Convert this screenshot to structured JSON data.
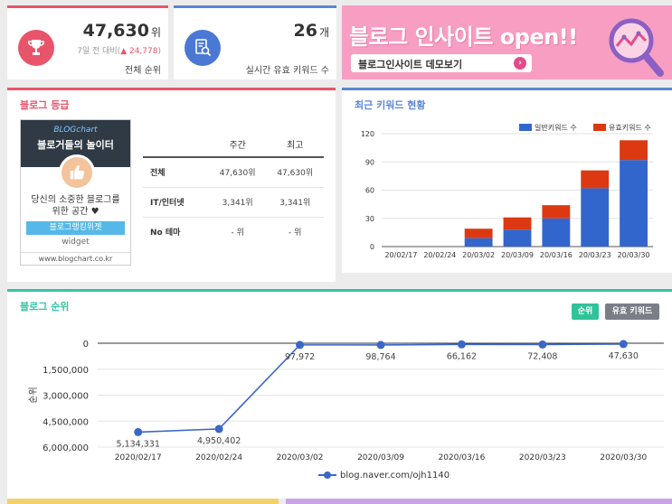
{
  "stats": {
    "rank": {
      "value": "47,630",
      "unit": "위",
      "change_prefix": "7일 전 대비(",
      "change_arrow": "▲",
      "change_value": "24,778",
      "change_suffix": ")",
      "label": "전체 순위",
      "icon": "trophy-icon",
      "color": "#e8556b"
    },
    "keywords": {
      "value": "26",
      "unit": "개",
      "label": "실시간 유효 키워드 수",
      "icon": "document-search-icon",
      "color": "#4a78d4"
    }
  },
  "banner": {
    "title": "블로그 인사이트 open!!",
    "button_label": "블로그인사이트 데모보기",
    "chevron": "›",
    "icon": "magnifier-chart-icon"
  },
  "grade": {
    "title": "블로그 등급",
    "widget": {
      "brand": "BLOGchart",
      "headline": "블로거들의 놀이터",
      "line1": "당신의 소중한 블로그를",
      "line2": "위한 공간 ♥",
      "link": "블로그랭킹위젯",
      "label": "widget",
      "url": "www.blogchart.co.kr"
    },
    "columns": [
      "",
      "주간",
      "최고"
    ],
    "rows": [
      {
        "label": "전체",
        "weekly": "47,630위",
        "best": "47,630위"
      },
      {
        "label": "IT/인터넷",
        "weekly": "3,341위",
        "best": "3,341위"
      },
      {
        "label": "No 테마",
        "weekly": "- 위",
        "best": "- 위"
      }
    ]
  },
  "keyword_chart": {
    "title": "최근 키워드 현황",
    "chart_data": {
      "type": "bar",
      "stacked": true,
      "categories": [
        "20/02/17",
        "20/02/24",
        "20/03/02",
        "20/03/09",
        "20/03/16",
        "20/03/23",
        "20/03/30"
      ],
      "series": [
        {
          "name": "일반키워드 수",
          "color": "#3366cc",
          "values": [
            0,
            0,
            9,
            18,
            30,
            62,
            92
          ]
        },
        {
          "name": "유효키워드 수",
          "color": "#dc3912",
          "values": [
            0,
            0,
            10,
            13,
            14,
            19,
            21
          ]
        }
      ],
      "ylim": [
        0,
        120
      ],
      "yticks": [
        0,
        30,
        60,
        90,
        120
      ],
      "legend": "top-right",
      "grid": true
    }
  },
  "rank_chart": {
    "title": "블로그 순위",
    "buttons": {
      "rank": "순위",
      "keyword": "유효 키워드"
    },
    "chart_data": {
      "type": "line",
      "categories": [
        "2020/02/17",
        "2020/02/24",
        "2020/03/02",
        "2020/03/09",
        "2020/03/16",
        "2020/03/23",
        "2020/03/30"
      ],
      "series": [
        {
          "name": "blog.naver.com/ojh1140",
          "color": "#3b67c8",
          "values": [
            5134331,
            4950402,
            97972,
            98764,
            66162,
            72408,
            47630
          ],
          "labels": [
            "5,134,331",
            "4,950,402",
            "97,972",
            "98,764",
            "66,162",
            "72,408",
            "47,630"
          ]
        }
      ],
      "ylabel": "순위",
      "ylim": [
        0,
        6000000
      ],
      "y_inverted": true,
      "yticks": [
        0,
        1500000,
        3000000,
        4500000,
        6000000
      ],
      "ytick_labels": [
        "0",
        "1,500,000",
        "3,000,000",
        "4,500,000",
        "6,000,000"
      ],
      "legend": "bottom"
    }
  }
}
